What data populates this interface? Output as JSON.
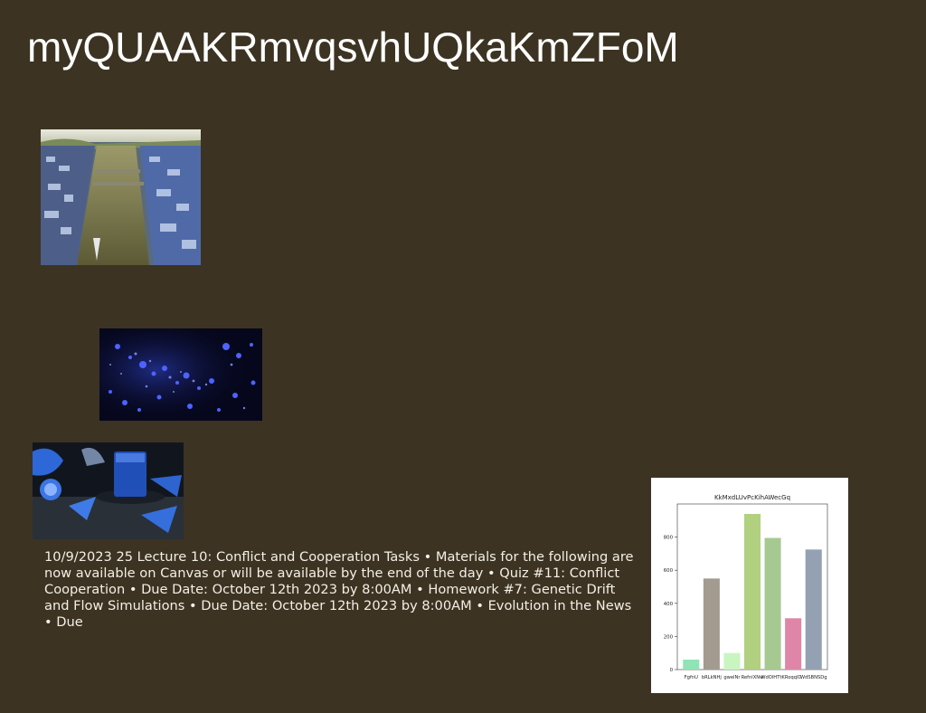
{
  "page": {
    "title": "myQUAAKRmvqsvhUQkaKmZFoM",
    "body_text": "10/9/2023 25 Lecture 10: Conflict and Cooperation Tasks • Materials for the following are now available on Canvas or will be available by the end of the day • Quiz #11: Conflict Cooperation • Due Date: October 12th 2023 by 8:00AM • Homework #7: Genetic Drift and Flow Simulations • Due Date: October 12th 2023 by 8:00AM • Evolution in the News • Due"
  },
  "images": {
    "city": "aerial-river-city-photo",
    "bokeh": "blue-bokeh-particles-photo",
    "drink": "blue-drink-glass-photo"
  },
  "chart_data": {
    "type": "bar",
    "title": "KkMxdLUvPcKihAWecGq",
    "categories": [
      "FgfnU",
      "bRLkNHj",
      "gwelNr",
      "RefnlXNw",
      "WdOlHTtK",
      "RoqqlD",
      "WdSBNSDg"
    ],
    "values": [
      60,
      550,
      100,
      940,
      795,
      310,
      725
    ],
    "colors": [
      "#8fe3b4",
      "#a39a90",
      "#c9f5c1",
      "#b1d080",
      "#a6c992",
      "#df86a8",
      "#93a1b3"
    ],
    "ylim": [
      0,
      1000
    ],
    "yticks": [
      0,
      200,
      400,
      600,
      800
    ],
    "xlabel": "",
    "ylabel": "",
    "grid": false
  }
}
